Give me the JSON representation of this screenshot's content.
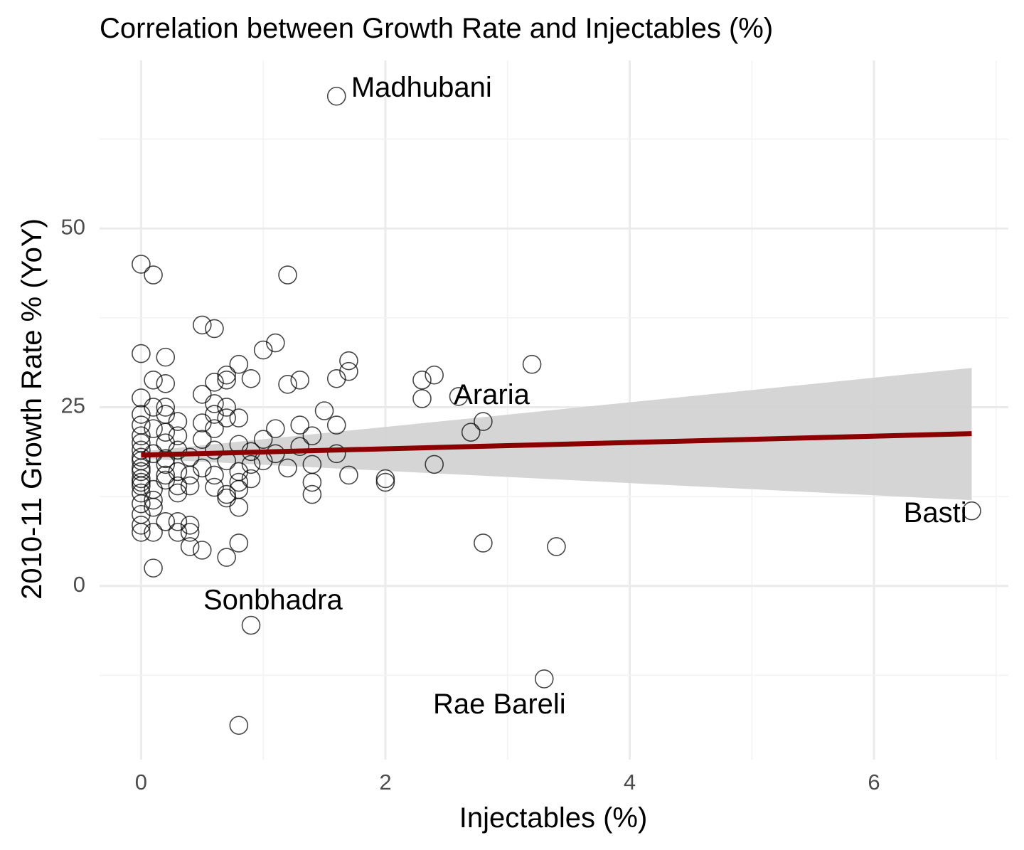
{
  "chart_data": {
    "type": "scatter",
    "title": "Correlation between Growth Rate and Injectables (%)",
    "xlabel": "Injectables (%)",
    "ylabel": "2010-11 Growth Rate % (YoY)",
    "xlim": [
      -0.34,
      7.1
    ],
    "ylim": [
      -24.3,
      73.5
    ],
    "x_ticks": [
      0,
      2,
      4,
      6
    ],
    "x_tick_labels": [
      "0",
      "2",
      "4",
      "6"
    ],
    "y_ticks": [
      0,
      25,
      50
    ],
    "y_tick_labels": [
      "0",
      "25",
      "50"
    ],
    "grid": true,
    "legend": "none",
    "colors": {
      "points_stroke": "#000000",
      "trend_line": "#8b0000",
      "confidence_band": "#d3d3d3",
      "grid_major": "#ebebeb",
      "grid_minor": "#f3f3f3"
    },
    "trend": {
      "x": [
        0,
        6.8
      ],
      "y": [
        18.3,
        21.3
      ],
      "ci_lower": [
        17.8,
        12.0
      ],
      "ci_upper": [
        18.8,
        30.5
      ]
    },
    "points": [
      [
        1.6,
        68.5
      ],
      [
        0.0,
        45.0
      ],
      [
        0.1,
        43.5
      ],
      [
        1.2,
        43.5
      ],
      [
        0.5,
        36.5
      ],
      [
        0.6,
        36.0
      ],
      [
        1.1,
        34.0
      ],
      [
        1.0,
        33.0
      ],
      [
        0.0,
        32.5
      ],
      [
        0.2,
        32.0
      ],
      [
        1.7,
        31.5
      ],
      [
        3.2,
        31.0
      ],
      [
        0.8,
        31.0
      ],
      [
        1.7,
        30.0
      ],
      [
        0.7,
        29.5
      ],
      [
        2.4,
        29.5
      ],
      [
        1.6,
        29.0
      ],
      [
        0.9,
        29.0
      ],
      [
        0.1,
        28.8
      ],
      [
        2.3,
        28.8
      ],
      [
        1.3,
        28.8
      ],
      [
        0.6,
        28.5
      ],
      [
        1.2,
        28.2
      ],
      [
        0.2,
        28.3
      ],
      [
        0.7,
        28.8
      ],
      [
        0.5,
        26.8
      ],
      [
        2.6,
        26.5
      ],
      [
        2.3,
        26.2
      ],
      [
        0.0,
        26.3
      ],
      [
        0.6,
        25.5
      ],
      [
        0.2,
        25.0
      ],
      [
        0.7,
        25.0
      ],
      [
        0.1,
        25.0
      ],
      [
        1.5,
        24.5
      ],
      [
        0.0,
        24.0
      ],
      [
        0.2,
        24.0
      ],
      [
        0.6,
        24.0
      ],
      [
        0.7,
        23.5
      ],
      [
        0.8,
        23.5
      ],
      [
        0.3,
        23.0
      ],
      [
        2.8,
        23.0
      ],
      [
        1.3,
        22.5
      ],
      [
        0.0,
        22.5
      ],
      [
        0.5,
        22.8
      ],
      [
        1.6,
        22.5
      ],
      [
        0.1,
        22.0
      ],
      [
        1.1,
        22.0
      ],
      [
        0.6,
        22.0
      ],
      [
        2.7,
        21.5
      ],
      [
        0.2,
        21.5
      ],
      [
        0.0,
        21.0
      ],
      [
        0.3,
        21.0
      ],
      [
        1.4,
        21.0
      ],
      [
        1.0,
        20.5
      ],
      [
        0.5,
        20.5
      ],
      [
        0.2,
        20.0
      ],
      [
        0.0,
        20.0
      ],
      [
        0.8,
        19.8
      ],
      [
        1.3,
        19.5
      ],
      [
        0.3,
        19.0
      ],
      [
        0.6,
        19.0
      ],
      [
        0.0,
        19.0
      ],
      [
        0.9,
        18.8
      ],
      [
        0.1,
        18.5
      ],
      [
        1.1,
        18.5
      ],
      [
        1.6,
        18.5
      ],
      [
        0.0,
        18.0
      ],
      [
        0.4,
        18.0
      ],
      [
        0.2,
        17.8
      ],
      [
        1.0,
        17.5
      ],
      [
        0.0,
        17.5
      ],
      [
        0.7,
        17.5
      ],
      [
        0.9,
        17.0
      ],
      [
        1.4,
        17.0
      ],
      [
        2.4,
        17.0
      ],
      [
        0.2,
        17.0
      ],
      [
        0.0,
        16.5
      ],
      [
        0.5,
        16.5
      ],
      [
        1.2,
        16.5
      ],
      [
        0.8,
        16.0
      ],
      [
        0.0,
        16.0
      ],
      [
        0.3,
        16.0
      ],
      [
        0.6,
        15.5
      ],
      [
        0.2,
        15.5
      ],
      [
        1.7,
        15.5
      ],
      [
        0.0,
        15.0
      ],
      [
        0.4,
        15.5
      ],
      [
        0.9,
        15.0
      ],
      [
        2.0,
        15.0
      ],
      [
        0.2,
        14.8
      ],
      [
        0.0,
        14.5
      ],
      [
        0.8,
        14.5
      ],
      [
        0.3,
        14.0
      ],
      [
        2.0,
        14.5
      ],
      [
        1.4,
        14.5
      ],
      [
        0.0,
        14.0
      ],
      [
        0.6,
        13.8
      ],
      [
        0.4,
        14.0
      ],
      [
        0.1,
        13.5
      ],
      [
        0.8,
        13.5
      ],
      [
        0.3,
        13.0
      ],
      [
        0.0,
        13.0
      ],
      [
        1.4,
        12.8
      ],
      [
        0.7,
        12.8
      ],
      [
        0.1,
        12.0
      ],
      [
        0.7,
        12.3
      ],
      [
        0.0,
        11.5
      ],
      [
        0.1,
        11.0
      ],
      [
        0.8,
        11.0
      ],
      [
        6.8,
        10.5
      ],
      [
        0.0,
        10.0
      ],
      [
        0.2,
        9.0
      ],
      [
        0.3,
        9.0
      ],
      [
        0.0,
        8.5
      ],
      [
        0.4,
        8.5
      ],
      [
        0.4,
        7.5
      ],
      [
        0.3,
        7.5
      ],
      [
        0.1,
        7.5
      ],
      [
        0.0,
        7.5
      ],
      [
        0.8,
        6.0
      ],
      [
        2.8,
        6.0
      ],
      [
        3.4,
        5.5
      ],
      [
        0.4,
        5.5
      ],
      [
        0.5,
        5.0
      ],
      [
        0.7,
        4.0
      ],
      [
        0.1,
        2.5
      ],
      [
        0.9,
        -5.5
      ],
      [
        3.3,
        -13.0
      ],
      [
        0.8,
        -19.5
      ]
    ],
    "annotations": [
      {
        "text": "Madhubani",
        "x": 1.72,
        "y": 69.5,
        "anchor": "start"
      },
      {
        "text": "Araria",
        "x": 2.56,
        "y": 26.5,
        "anchor": "start"
      },
      {
        "text": "Basti",
        "x": 6.76,
        "y": 10.0,
        "anchor": "end"
      },
      {
        "text": "Sonbhadra",
        "x": 0.51,
        "y": -2.2,
        "anchor": "start"
      },
      {
        "text": "Rae Bareli",
        "x": 2.39,
        "y": -16.8,
        "anchor": "start"
      }
    ]
  }
}
